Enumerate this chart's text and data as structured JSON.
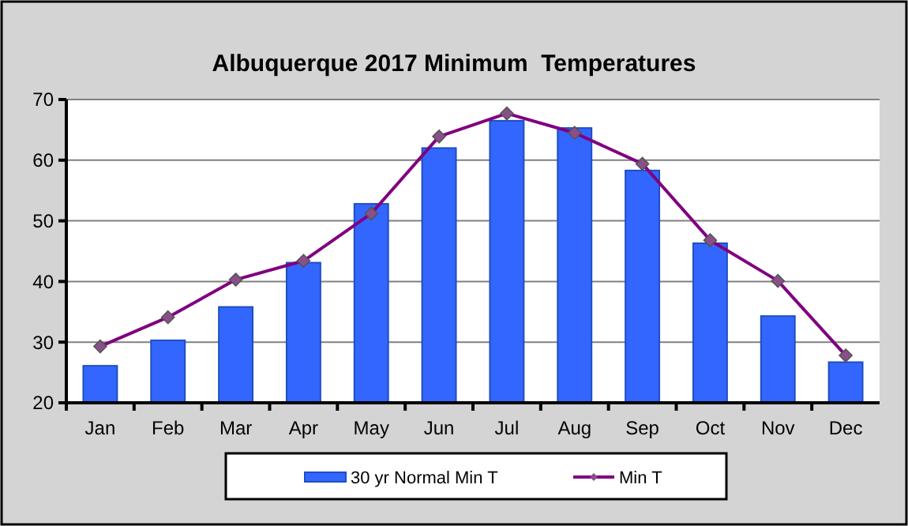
{
  "chart_data": {
    "type": "bar",
    "title": "Albuquerque 2017 Minimum  Temperatures",
    "categories": [
      "Jan",
      "Feb",
      "Mar",
      "Apr",
      "May",
      "Jun",
      "Jul",
      "Aug",
      "Sep",
      "Oct",
      "Nov",
      "Dec"
    ],
    "series": [
      {
        "name": "30 yr Normal Min T",
        "color": "#3366ff",
        "values": [
          26.1,
          30.3,
          35.8,
          43.1,
          52.8,
          62,
          66.5,
          65.3,
          58.3,
          46.3,
          34.3,
          26.7
        ]
      },
      {
        "name": "Min T",
        "type": "line",
        "color": "#800080",
        "marker": "diamond",
        "values": [
          29.3,
          34.1,
          40.3,
          43.4,
          51.2,
          63.9,
          67.7,
          64.5,
          59.4,
          46.8,
          40.1,
          27.8
        ]
      }
    ],
    "ylim": [
      20,
      70
    ],
    "yticks": [
      20,
      30,
      40,
      50,
      60,
      70
    ],
    "grid": "y",
    "legend": "bottom"
  }
}
